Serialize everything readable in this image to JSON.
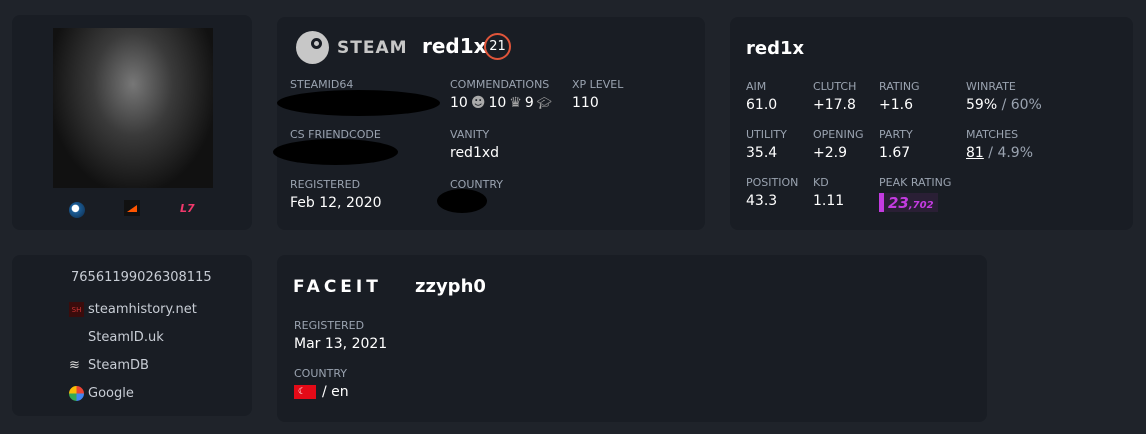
{
  "steam_card": {
    "brand": "STEAM",
    "username": "red1x",
    "level": "21",
    "fields": {
      "steamid64_label": "STEAMID64",
      "friendcode_label": "CS FRIENDCODE",
      "registered_label": "REGISTERED",
      "registered": "Feb 12, 2020",
      "commendations_label": "COMMENDATIONS",
      "commend_friendly": "10",
      "commend_leader": "10",
      "commend_teacher": "9",
      "xp_label": "XP LEVEL",
      "xp": "110",
      "vanity_label": "VANITY",
      "vanity": "red1xd",
      "country_label": "COUNTRY"
    }
  },
  "stats_card": {
    "username": "red1x",
    "stats": [
      {
        "label": "AIM",
        "value": "61.0"
      },
      {
        "label": "CLUTCH",
        "value": "+17.8"
      },
      {
        "label": "RATING",
        "value": "+1.6"
      },
      {
        "label": "UTILITY",
        "value": "35.4"
      },
      {
        "label": "OPENING",
        "value": "+2.9"
      },
      {
        "label": "PARTY",
        "value": "1.67"
      },
      {
        "label": "POSITION",
        "value": "43.3"
      },
      {
        "label": "KD",
        "value": "1.11"
      }
    ],
    "winrate_label": "WINRATE",
    "winrate": "59%",
    "winrate_alt": "/ 60%",
    "matches_label": "MATCHES",
    "matches": "81",
    "matches_alt": "/ 4.9%",
    "peak_label": "PEAK RATING",
    "peak_major": "23",
    "peak_minor": ",702",
    "peak_color": "#c33be0"
  },
  "links_card": {
    "steamid": "76561199026308115",
    "links": [
      "steamhistory.net",
      "SteamID.uk",
      "SteamDB",
      "Google"
    ]
  },
  "faceit_card": {
    "brand": "FACEIT",
    "username": "zzyph0",
    "registered_label": "REGISTERED",
    "registered": "Mar 13, 2021",
    "country_label": "COUNTRY",
    "language": "/ en"
  },
  "colors": {
    "level_ring": "#e0553a",
    "faceit_orange": "#ff5500",
    "leetify_pink": "#f0386b"
  }
}
